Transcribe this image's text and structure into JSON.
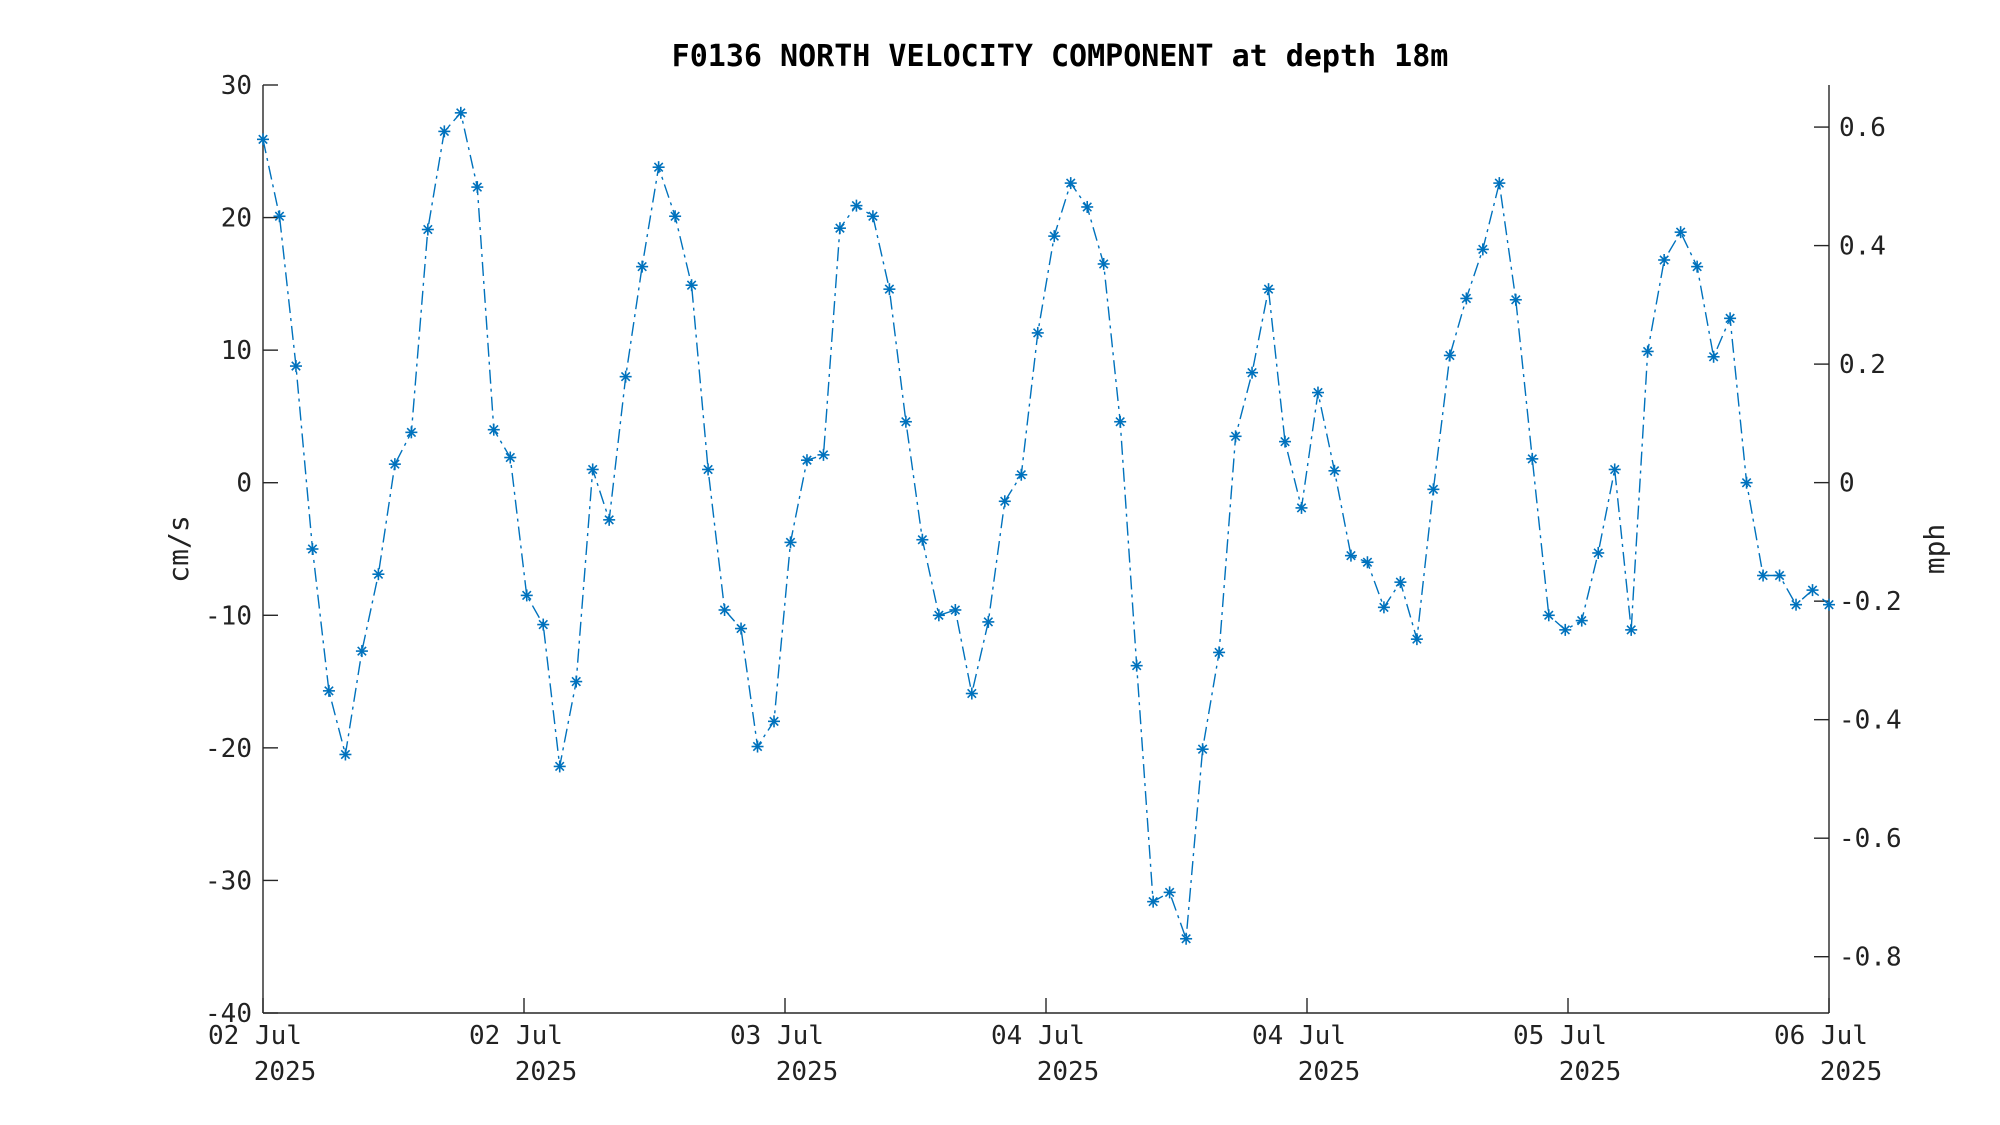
{
  "chart_data": {
    "type": "line",
    "title": "F0136 NORTH VELOCITY COMPONENT at depth 18m",
    "ylabel": "cm/s",
    "y2label": "mph",
    "ylim": [
      -40,
      30
    ],
    "y2lim": [
      -0.895,
      0.671
    ],
    "yticks": [
      30,
      20,
      10,
      0,
      -10,
      -20,
      -30,
      -40
    ],
    "y2ticks": [
      0.6,
      0.4,
      0.2,
      0,
      -0.2,
      -0.4,
      -0.6,
      -0.8
    ],
    "xticks": [
      {
        "line1": "02 Jul",
        "line2": "2025"
      },
      {
        "line1": "02 Jul",
        "line2": "2025"
      },
      {
        "line1": "03 Jul",
        "line2": "2025"
      },
      {
        "line1": "04 Jul",
        "line2": "2025"
      },
      {
        "line1": "04 Jul",
        "line2": "2025"
      },
      {
        "line1": "05 Jul",
        "line2": "2025"
      },
      {
        "line1": "06 Jul",
        "line2": "2025"
      }
    ],
    "grid": false,
    "marker": "asterisk",
    "color": "#0072BD",
    "line_style": "dash-dot",
    "series": [
      {
        "values": [
          25.9,
          20.1,
          8.8,
          -5.0,
          -15.7,
          -20.5,
          -12.7,
          -6.9,
          1.4,
          3.8,
          19.1,
          26.5,
          27.9,
          22.3,
          4.0,
          1.9,
          -8.5,
          -10.7,
          -21.4,
          -15.0,
          1.0,
          -2.8,
          8.0,
          16.3,
          23.8,
          20.1,
          14.9,
          1.0,
          -9.6,
          -11.0,
          -19.9,
          -18.0,
          -4.5,
          1.7,
          2.1,
          19.2,
          20.9,
          20.1,
          14.6,
          4.6,
          -4.3,
          -10.0,
          -9.6,
          -15.9,
          -10.5,
          -1.4,
          0.6,
          11.3,
          18.6,
          22.6,
          20.8,
          16.5,
          4.6,
          -13.8,
          -31.6,
          -30.9,
          -34.4,
          -20.1,
          -12.8,
          3.5,
          8.3,
          14.6,
          3.1,
          -1.9,
          6.8,
          0.9,
          -5.5,
          -6.0,
          -9.4,
          -7.5,
          -11.8,
          -0.5,
          9.6,
          13.9,
          17.6,
          22.6,
          13.8,
          1.8,
          -10.0,
          -11.1,
          -10.4,
          -5.3,
          1.0,
          -11.1,
          9.9,
          16.8,
          18.9,
          16.3,
          9.5,
          12.4,
          0.0,
          -7.0,
          -7.0,
          -9.2,
          -8.1,
          -9.2
        ]
      }
    ]
  }
}
